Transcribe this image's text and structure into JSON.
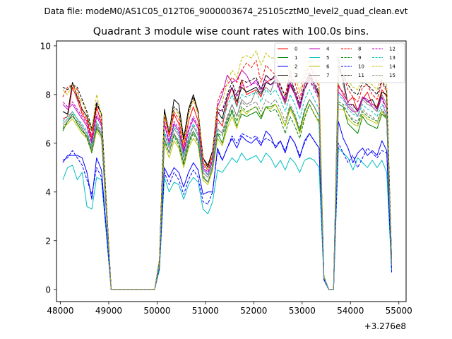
{
  "suptitle": "Data file: modeM0/AS1C05_012T06_9000003674_25105cztM0_level2_quad_clean.evt",
  "chart_data": {
    "type": "line",
    "title": "Quadrant 3 module wise count rates with 100.0s bins.",
    "xlabel": "",
    "ylabel": "",
    "offset_text": "+3.276e8",
    "xlim": [
      47920,
      55150
    ],
    "ylim": [
      -0.5,
      10.2
    ],
    "x_ticks": [
      48000,
      49000,
      50000,
      51000,
      52000,
      53000,
      54000,
      55000
    ],
    "x_tick_labels": [
      "48000",
      "49000",
      "50000",
      "51000",
      "52000",
      "53000",
      "54000",
      "55000"
    ],
    "y_ticks": [
      0,
      2,
      4,
      6,
      8,
      10
    ],
    "y_tick_labels": [
      "0",
      "2",
      "4",
      "6",
      "8",
      "10"
    ],
    "legend_placement": "upper right, 4 columns",
    "x_start": 48050,
    "x_step": 100,
    "series": [
      {
        "name": "0",
        "color": "#ff0000",
        "dash": "solid",
        "values": [
          7.0,
          7.1,
          8.3,
          7.8,
          7.2,
          6.9,
          6.2,
          7.5,
          6.8,
          3.5,
          0,
          0,
          0,
          0,
          0,
          0,
          0,
          0,
          0,
          0,
          1.2,
          7.2,
          6.3,
          7.2,
          6.8,
          5.8,
          6.9,
          7.5,
          6.9,
          5.2,
          4.9,
          5.5,
          7.0,
          6.7,
          7.7,
          8.3,
          7.5,
          8.6,
          8.0,
          8.1,
          8.2,
          7.9,
          8.5,
          8.6,
          8.8,
          8.1,
          7.6,
          8.4,
          8.0,
          7.4,
          8.2,
          8.8,
          8.4,
          8.0,
          0.5,
          0,
          0,
          8.4,
          8.0,
          7.7,
          7.9,
          7.3,
          7.8,
          8.1,
          7.6,
          7.5,
          8.2,
          7.9,
          1.2
        ]
      },
      {
        "name": "1",
        "color": "#008000",
        "dash": "solid",
        "values": [
          6.5,
          6.9,
          7.2,
          6.8,
          6.5,
          6.3,
          5.7,
          6.6,
          6.3,
          3.2,
          0,
          0,
          0,
          0,
          0,
          0,
          0,
          0,
          0,
          0,
          1.1,
          6.2,
          5.6,
          6.4,
          6.0,
          5.2,
          6.0,
          6.5,
          6.1,
          4.6,
          4.4,
          5.0,
          6.4,
          6.0,
          6.8,
          7.3,
          6.7,
          7.2,
          7.1,
          7.2,
          7.3,
          7.0,
          7.5,
          7.5,
          7.6,
          7.2,
          6.7,
          7.5,
          7.1,
          6.5,
          7.3,
          7.8,
          7.5,
          7.1,
          0.5,
          0,
          0,
          7.6,
          7.5,
          6.8,
          6.6,
          6.4,
          7.1,
          6.8,
          6.7,
          6.6,
          7.2,
          7.0,
          1.1
        ]
      },
      {
        "name": "2",
        "color": "#0000ff",
        "dash": "solid",
        "values": [
          5.2,
          5.5,
          5.5,
          5.5,
          5.4,
          4.8,
          3.7,
          5.4,
          4.9,
          2.5,
          0,
          0,
          0,
          0,
          0,
          0,
          0,
          0,
          0,
          0,
          0.9,
          5.0,
          4.6,
          5.0,
          4.8,
          4.2,
          4.8,
          5.2,
          4.9,
          3.9,
          4.0,
          4.0,
          5.8,
          5.3,
          5.8,
          6.2,
          5.8,
          6.3,
          6.1,
          6.0,
          6.2,
          5.9,
          6.5,
          6.3,
          5.8,
          6.1,
          5.6,
          6.3,
          6.0,
          5.4,
          6.1,
          6.4,
          6.1,
          5.8,
          0.4,
          0,
          0,
          6.9,
          6.2,
          5.8,
          5.2,
          5.6,
          5.8,
          5.5,
          5.7,
          5.5,
          6.1,
          5.7,
          0.8
        ]
      },
      {
        "name": "3",
        "color": "#000000",
        "dash": "solid",
        "values": [
          7.3,
          7.2,
          8.5,
          7.9,
          7.4,
          7.1,
          6.5,
          7.6,
          7.2,
          3.6,
          0,
          0,
          0,
          0,
          0,
          0,
          0,
          0,
          0,
          0,
          1.2,
          7.4,
          6.4,
          7.8,
          7.6,
          6.2,
          7.4,
          8.0,
          7.3,
          5.4,
          5.1,
          5.7,
          7.3,
          7.0,
          7.9,
          8.3,
          7.7,
          8.3,
          8.1,
          8.2,
          8.3,
          8.0,
          8.5,
          8.4,
          8.6,
          8.2,
          7.7,
          8.5,
          8.0,
          7.5,
          8.2,
          8.7,
          8.4,
          8.0,
          0.5,
          0,
          0,
          9.2,
          8.6,
          7.6,
          7.6,
          7.3,
          7.9,
          7.7,
          7.8,
          7.4,
          8.1,
          8.0,
          1.2
        ]
      },
      {
        "name": "4",
        "color": "#bf00bf",
        "dash": "solid",
        "values": [
          7.6,
          7.4,
          7.6,
          7.3,
          7.0,
          6.7,
          6.0,
          7.1,
          6.7,
          3.4,
          0,
          0,
          0,
          0,
          0,
          0,
          0,
          0,
          0,
          0,
          1.1,
          6.8,
          6.0,
          6.8,
          6.5,
          5.6,
          6.5,
          7.0,
          6.6,
          5.0,
          4.7,
          5.3,
          7.5,
          8.0,
          8.8,
          8.5,
          8.6,
          9.0,
          8.8,
          8.4,
          8.6,
          8.2,
          8.8,
          8.6,
          8.7,
          8.1,
          7.8,
          8.5,
          8.1,
          7.5,
          8.4,
          8.9,
          8.4,
          7.9,
          0.5,
          0,
          0,
          8.1,
          7.9,
          7.5,
          7.3,
          7.3,
          7.9,
          7.8,
          7.5,
          7.3,
          7.9,
          7.4,
          1.1
        ]
      },
      {
        "name": "5",
        "color": "#00bfbf",
        "dash": "solid",
        "values": [
          4.5,
          5.0,
          5.1,
          4.5,
          4.8,
          3.4,
          3.3,
          4.6,
          4.5,
          2.3,
          0,
          0,
          0,
          0,
          0,
          0,
          0,
          0,
          0,
          0,
          0.8,
          4.6,
          4.0,
          4.4,
          4.3,
          3.7,
          4.3,
          4.6,
          4.4,
          3.3,
          3.1,
          3.6,
          4.9,
          4.8,
          5.1,
          5.4,
          5.2,
          5.6,
          5.3,
          5.4,
          5.5,
          5.2,
          5.6,
          5.4,
          5.0,
          5.3,
          4.9,
          5.4,
          5.2,
          4.8,
          5.3,
          5.4,
          5.3,
          5.0,
          0.4,
          0,
          0,
          5.8,
          5.6,
          5.4,
          4.9,
          5.4,
          5.2,
          5.0,
          5.3,
          5.0,
          5.3,
          4.8,
          0.8
        ]
      },
      {
        "name": "6",
        "color": "#bfbf00",
        "dash": "solid",
        "values": [
          6.6,
          6.8,
          7.0,
          6.7,
          6.4,
          6.2,
          5.6,
          6.5,
          6.2,
          3.2,
          0,
          0,
          0,
          0,
          0,
          0,
          0,
          0,
          0,
          0,
          1.0,
          6.0,
          5.4,
          6.1,
          5.8,
          5.0,
          5.8,
          6.2,
          5.9,
          4.5,
          4.3,
          4.9,
          6.2,
          5.9,
          6.6,
          7.1,
          6.6,
          7.4,
          7.2,
          7.4,
          7.5,
          7.1,
          7.5,
          7.4,
          7.6,
          7.2,
          6.7,
          7.4,
          7.0,
          6.4,
          7.1,
          7.6,
          7.2,
          6.8,
          0.5,
          0,
          0,
          7.4,
          7.4,
          7.0,
          6.8,
          6.7,
          7.2,
          7.0,
          6.9,
          6.8,
          7.3,
          7.0,
          1.0
        ]
      },
      {
        "name": "7",
        "color": "#808080",
        "dash": "solid",
        "values": [
          6.8,
          7.0,
          7.3,
          7.0,
          6.7,
          6.4,
          5.8,
          6.8,
          6.4,
          3.3,
          0,
          0,
          0,
          0,
          0,
          0,
          0,
          0,
          0,
          0,
          1.1,
          6.4,
          5.8,
          6.6,
          6.3,
          5.4,
          6.2,
          6.7,
          6.3,
          4.8,
          4.6,
          5.1,
          6.6,
          6.4,
          7.0,
          7.6,
          7.1,
          7.8,
          7.6,
          7.7,
          8.2,
          8.0,
          8.3,
          8.1,
          8.7,
          8.2,
          7.6,
          9.0,
          8.0,
          7.4,
          8.2,
          8.6,
          8.3,
          7.9,
          0.5,
          0,
          0,
          9.5,
          8.4,
          7.6,
          7.4,
          7.1,
          7.8,
          7.6,
          7.5,
          7.3,
          8.0,
          7.6,
          1.1
        ]
      },
      {
        "name": "8",
        "color": "#ff0000",
        "dash": "dashed",
        "values": [
          7.9,
          8.3,
          8.4,
          8.2,
          7.3,
          7.0,
          6.3,
          7.4,
          7.0,
          3.5,
          0,
          0,
          0,
          0,
          0,
          0,
          0,
          0,
          0,
          0,
          1.2,
          7.1,
          6.3,
          7.3,
          7.0,
          6.0,
          7.2,
          7.8,
          7.2,
          5.4,
          5.0,
          5.7,
          7.7,
          8.2,
          8.4,
          8.7,
          8.5,
          9.0,
          9.3,
          9.1,
          9.4,
          8.5,
          9.2,
          9.0,
          8.8,
          8.3,
          8.0,
          8.8,
          8.5,
          7.8,
          8.7,
          9.2,
          8.8,
          8.3,
          0.5,
          0,
          0,
          8.8,
          8.8,
          8.2,
          7.9,
          7.7,
          8.3,
          8.4,
          8.0,
          7.8,
          8.5,
          8.1,
          1.2
        ]
      },
      {
        "name": "9",
        "color": "#008000",
        "dash": "dashed",
        "values": [
          6.6,
          6.9,
          7.1,
          6.9,
          6.6,
          6.2,
          5.6,
          6.7,
          6.3,
          3.2,
          0,
          0,
          0,
          0,
          0,
          0,
          0,
          0,
          0,
          0,
          1.0,
          6.1,
          5.6,
          6.3,
          5.9,
          5.1,
          5.9,
          6.4,
          6.0,
          4.6,
          4.4,
          5.0,
          6.4,
          6.3,
          6.9,
          7.4,
          6.9,
          7.5,
          7.3,
          7.4,
          7.5,
          7.1,
          7.5,
          7.3,
          7.4,
          7.0,
          6.4,
          7.1,
          6.7,
          6.2,
          7.0,
          7.6,
          7.2,
          6.9,
          0.5,
          0,
          0,
          7.7,
          7.6,
          7.2,
          6.9,
          6.8,
          7.3,
          7.1,
          7.0,
          6.9,
          7.4,
          7.0,
          1.0
        ]
      },
      {
        "name": "10",
        "color": "#0000ff",
        "dash": "dashed",
        "values": [
          5.3,
          5.4,
          5.7,
          5.4,
          5.1,
          4.5,
          3.9,
          5.0,
          4.6,
          2.4,
          0,
          0,
          0,
          0,
          0,
          0,
          0,
          0,
          0,
          0,
          0.9,
          4.8,
          4.3,
          4.8,
          4.5,
          3.9,
          4.5,
          4.9,
          4.6,
          3.6,
          3.5,
          4.0,
          5.7,
          5.3,
          5.8,
          6.3,
          6.0,
          6.4,
          6.3,
          6.2,
          6.3,
          6.0,
          6.2,
          6.1,
          5.9,
          6.1,
          5.7,
          6.3,
          6.0,
          5.5,
          6.0,
          6.4,
          6.1,
          5.8,
          0.4,
          0,
          0,
          6.0,
          5.6,
          5.2,
          5.5,
          5.0,
          5.4,
          5.8,
          5.6,
          5.4,
          5.7,
          5.6,
          0.7
        ]
      },
      {
        "name": "11",
        "color": "#000000",
        "dash": "dashed",
        "values": [
          8.3,
          8.2,
          8.4,
          8.3,
          7.8,
          7.3,
          6.6,
          7.7,
          7.2,
          3.6,
          0,
          0,
          0,
          0,
          0,
          0,
          0,
          0,
          0,
          0,
          1.2,
          7.3,
          6.5,
          7.5,
          7.3,
          6.1,
          7.3,
          7.9,
          7.3,
          5.4,
          5.0,
          5.7,
          7.4,
          7.3,
          8.0,
          8.5,
          8.0,
          8.6,
          8.5,
          8.6,
          8.7,
          8.2,
          8.8,
          8.6,
          8.8,
          8.4,
          7.9,
          8.6,
          8.2,
          7.6,
          8.4,
          8.9,
          8.5,
          8.1,
          0.5,
          0,
          0,
          9.0,
          8.8,
          8.4,
          8.1,
          8.0,
          8.5,
          8.4,
          8.2,
          8.0,
          8.6,
          8.2,
          1.2
        ]
      },
      {
        "name": "12",
        "color": "#bf00bf",
        "dash": "dashed",
        "values": [
          7.7,
          7.5,
          7.7,
          7.4,
          7.1,
          6.8,
          6.1,
          7.2,
          6.8,
          3.4,
          0,
          0,
          0,
          0,
          0,
          0,
          0,
          0,
          0,
          0,
          1.1,
          6.9,
          6.1,
          6.9,
          6.6,
          5.7,
          6.6,
          7.1,
          6.7,
          5.1,
          4.8,
          5.4,
          7.2,
          7.4,
          7.9,
          8.3,
          7.9,
          8.4,
          8.3,
          8.4,
          8.5,
          8.1,
          8.6,
          8.4,
          8.5,
          8.1,
          7.7,
          8.4,
          8.0,
          7.4,
          8.2,
          8.6,
          8.2,
          7.8,
          0.5,
          0,
          0,
          8.3,
          8.1,
          7.7,
          7.5,
          7.4,
          7.9,
          7.7,
          7.6,
          7.4,
          7.9,
          7.0,
          1.1
        ]
      },
      {
        "name": "13",
        "color": "#00bfbf",
        "dash": "dashed",
        "values": [
          6.9,
          7.1,
          7.3,
          7.0,
          6.8,
          6.5,
          5.9,
          6.9,
          6.5,
          3.3,
          0,
          0,
          0,
          0,
          0,
          0,
          0,
          0,
          0,
          0,
          1.1,
          6.5,
          5.9,
          6.7,
          6.4,
          5.5,
          6.3,
          6.8,
          6.4,
          4.9,
          4.7,
          5.2,
          6.8,
          6.9,
          7.5,
          8.0,
          7.5,
          8.0,
          7.9,
          8.0,
          8.1,
          7.7,
          8.2,
          8.0,
          8.2,
          7.8,
          7.3,
          8.0,
          7.6,
          7.0,
          7.8,
          8.2,
          7.8,
          7.4,
          0.5,
          0,
          0,
          8.0,
          7.8,
          7.4,
          7.2,
          7.1,
          7.6,
          7.4,
          7.3,
          7.1,
          7.6,
          7.2,
          1.1
        ]
      },
      {
        "name": "14",
        "color": "#bfbf00",
        "dash": "dashed",
        "values": [
          8.2,
          8.0,
          8.4,
          8.0,
          7.7,
          7.2,
          6.5,
          8.0,
          7.1,
          3.6,
          0,
          0,
          0,
          0,
          0,
          0,
          0,
          0,
          0,
          0,
          1.2,
          7.2,
          6.4,
          7.4,
          7.2,
          6.0,
          7.2,
          7.8,
          7.2,
          5.3,
          4.9,
          5.6,
          7.4,
          7.7,
          8.5,
          9.0,
          8.7,
          9.5,
          9.6,
          9.5,
          9.8,
          9.2,
          9.7,
          9.5,
          9.5,
          9.0,
          8.5,
          9.2,
          8.8,
          8.1,
          8.9,
          9.4,
          9.0,
          8.6,
          0.6,
          0,
          0,
          9.1,
          9.0,
          8.6,
          8.3,
          8.2,
          8.7,
          8.5,
          8.4,
          8.2,
          8.8,
          8.4,
          1.2
        ]
      },
      {
        "name": "15",
        "color": "#808080",
        "dash": "dashed",
        "values": [
          6.7,
          6.9,
          7.1,
          6.9,
          6.6,
          6.3,
          5.7,
          6.7,
          6.3,
          3.2,
          0,
          0,
          0,
          0,
          0,
          0,
          0,
          0,
          0,
          0,
          1.0,
          6.2,
          5.6,
          6.4,
          6.1,
          5.2,
          6.1,
          6.5,
          6.1,
          4.7,
          4.4,
          5.0,
          6.5,
          6.5,
          7.1,
          7.6,
          7.1,
          7.7,
          7.5,
          7.6,
          7.7,
          7.3,
          7.8,
          7.6,
          7.8,
          7.4,
          6.9,
          7.6,
          7.2,
          6.6,
          7.4,
          7.8,
          7.5,
          7.1,
          0.5,
          0,
          0,
          7.6,
          7.5,
          7.2,
          7.0,
          6.9,
          7.4,
          7.2,
          7.1,
          6.9,
          7.4,
          7.1,
          1.0
        ]
      }
    ]
  }
}
